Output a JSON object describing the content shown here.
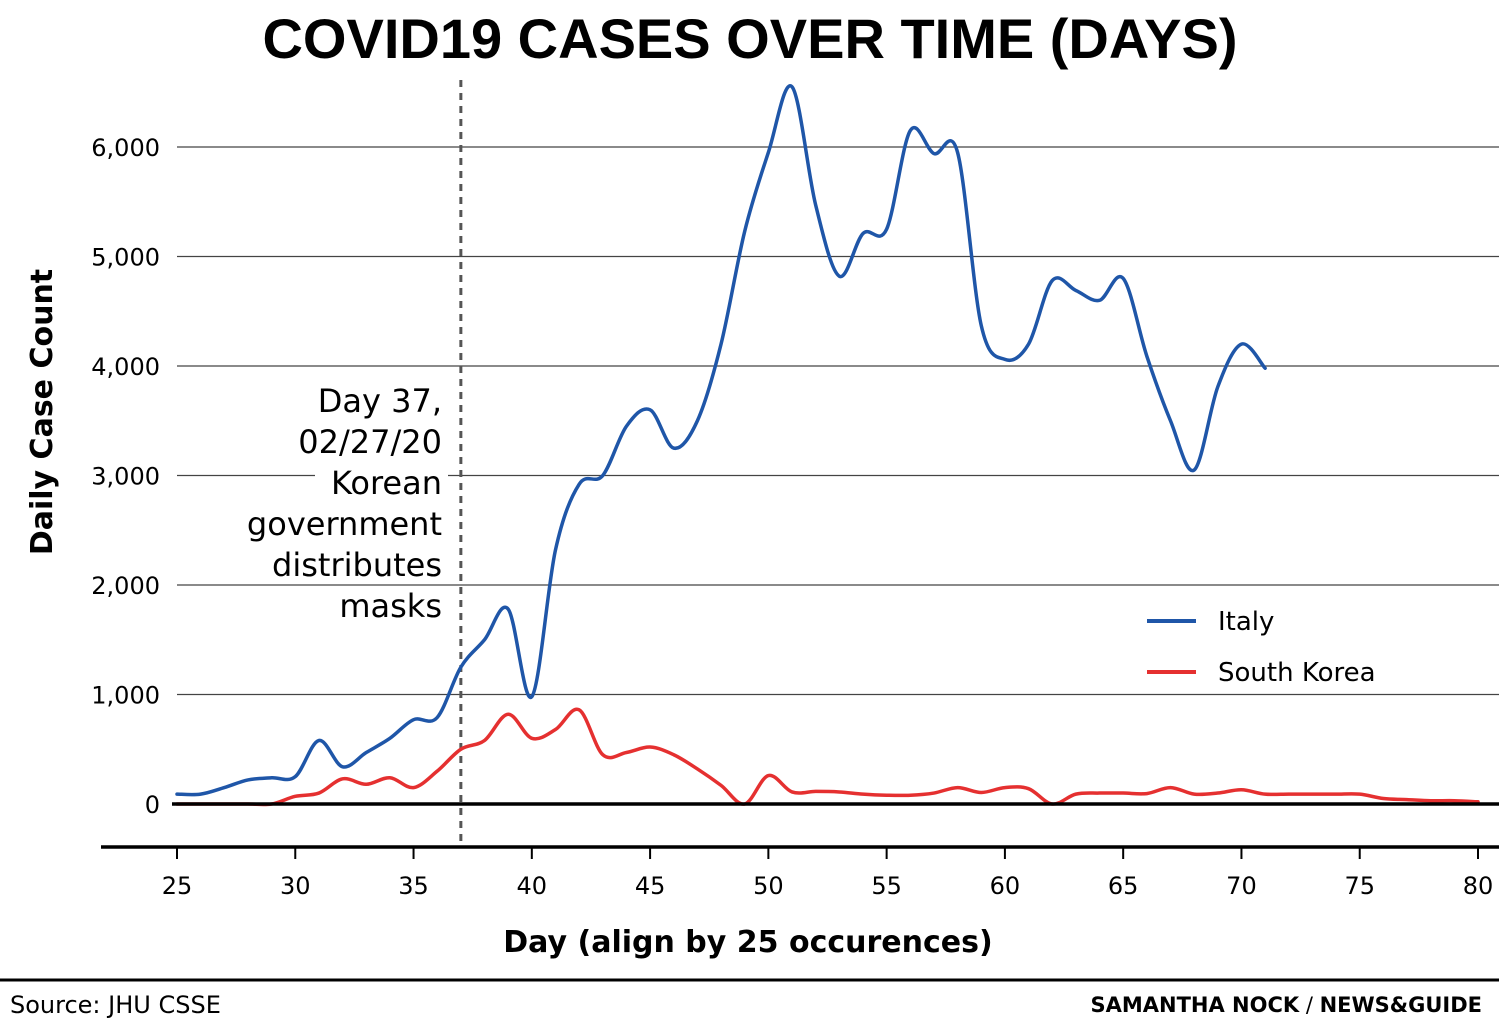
{
  "chart_data": {
    "type": "line",
    "title": "COVID19 CASES OVER TIME (DAYS)",
    "xlabel": "Day (align by 25 occurences)",
    "ylabel": "Daily Case Count",
    "xlim": [
      25,
      80
    ],
    "ylim": [
      0,
      6000
    ],
    "x_ticks": [
      25,
      30,
      35,
      40,
      45,
      50,
      55,
      60,
      65,
      70,
      75,
      80
    ],
    "y_ticks": [
      0,
      1000,
      2000,
      3000,
      4000,
      5000,
      6000
    ],
    "y_tick_labels": [
      "0",
      "1,000",
      "2,000",
      "3,000",
      "4,000",
      "5,000",
      "6,000"
    ],
    "grid": "horizontal",
    "legend_position": "lower-right",
    "series": [
      {
        "name": "Italy",
        "color": "#1f56a8",
        "x": [
          25,
          26,
          27,
          28,
          29,
          30,
          31,
          32,
          33,
          34,
          35,
          36,
          37,
          38,
          39,
          40,
          41,
          42,
          43,
          44,
          45,
          46,
          47,
          48,
          49,
          50,
          51,
          52,
          53,
          54,
          55,
          56,
          57,
          58,
          59,
          60,
          61,
          62,
          63,
          64,
          65,
          66,
          67,
          68,
          69,
          70,
          71
        ],
        "values": [
          90,
          90,
          150,
          220,
          240,
          250,
          580,
          340,
          470,
          600,
          770,
          790,
          1250,
          1500,
          1780,
          980,
          2320,
          2920,
          3000,
          3450,
          3600,
          3250,
          3500,
          4200,
          5230,
          5950,
          6550,
          5470,
          4820,
          5210,
          5250,
          6150,
          5940,
          5950,
          4370,
          4060,
          4200,
          4780,
          4690,
          4600,
          4800,
          4090,
          3500,
          3050,
          3810,
          4200,
          3980
        ]
      },
      {
        "name": "South Korea",
        "color": "#e53030",
        "x": [
          25,
          26,
          27,
          28,
          29,
          30,
          31,
          32,
          33,
          34,
          35,
          36,
          37,
          38,
          39,
          40,
          41,
          42,
          43,
          44,
          45,
          46,
          47,
          48,
          49,
          50,
          51,
          52,
          53,
          54,
          55,
          56,
          57,
          58,
          59,
          60,
          61,
          62,
          63,
          64,
          65,
          66,
          67,
          68,
          69,
          70,
          71,
          72,
          73,
          74,
          75,
          76,
          77,
          78,
          79,
          80
        ],
        "values": [
          0,
          0,
          0,
          0,
          0,
          70,
          100,
          230,
          180,
          240,
          150,
          300,
          500,
          580,
          820,
          600,
          680,
          860,
          450,
          470,
          520,
          450,
          320,
          170,
          0,
          260,
          110,
          115,
          110,
          90,
          80,
          80,
          100,
          150,
          105,
          150,
          140,
          0,
          90,
          100,
          100,
          95,
          150,
          90,
          100,
          130,
          90,
          90,
          90,
          90,
          90,
          50,
          40,
          30,
          30,
          20
        ]
      }
    ],
    "annotations": [
      {
        "type": "vertical-dashed-line",
        "x": 37,
        "lines": [
          "Day 37,",
          "02/27/20",
          "Korean",
          "government",
          "distributes",
          "masks"
        ]
      }
    ]
  },
  "footer": {
    "source": "Source: JHU CSSE",
    "credit_name": "SAMANTHA NOCK",
    "credit_separator": " / ",
    "credit_outlet": "NEWS&GUIDE"
  }
}
